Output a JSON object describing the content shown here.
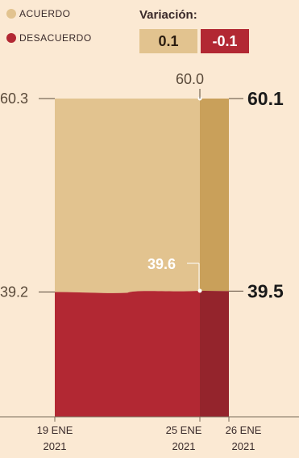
{
  "legend": [
    {
      "label": "ACUERDO",
      "color": "#e2c38f"
    },
    {
      "label": "DESACUERDO",
      "color": "#b22833"
    }
  ],
  "variation": {
    "title": "Variación:",
    "agree": "0.1",
    "disagree": "-0.1"
  },
  "colors": {
    "agree": "#e2c38f",
    "agree_dark": "#c9a05a",
    "disagree": "#b22833",
    "disagree_dark": "#94242c",
    "background": "#fbe9d3"
  },
  "chart_data": {
    "type": "area",
    "x": [
      "19 ENE 2021",
      "25 ENE 2021",
      "26 ENE 2021"
    ],
    "series": [
      {
        "name": "ACUERDO",
        "values": [
          60.3,
          60.0,
          60.1
        ]
      },
      {
        "name": "DESACUERDO",
        "values": [
          39.2,
          39.6,
          39.5
        ]
      }
    ],
    "value_labels": {
      "agree_start": "60.3",
      "agree_mid": "60.0",
      "agree_end": "60.1",
      "disagree_start": "39.2",
      "disagree_mid": "39.6",
      "disagree_end": "39.5"
    },
    "x_labels": [
      {
        "line1": "19 ENE",
        "line2": "2021"
      },
      {
        "line1": "25 ENE",
        "line2": "2021"
      },
      {
        "line1": "26 ENE",
        "line2": "2021"
      }
    ],
    "stacked": true,
    "ylim": [
      0,
      100
    ],
    "grid": false,
    "legend_position": "top-left"
  }
}
